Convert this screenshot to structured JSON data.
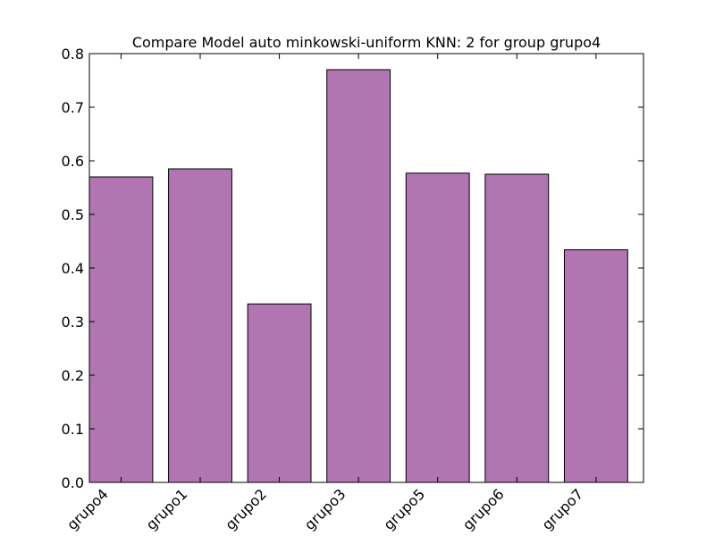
{
  "chart_data": {
    "type": "bar",
    "title": "Compare Model auto minkowski-uniform KNN: 2 for group grupo4",
    "xlabel": "",
    "ylabel": "",
    "categories": [
      "grupo4",
      "grupo1",
      "grupo2",
      "grupo3",
      "grupo5",
      "grupo6",
      "grupo7"
    ],
    "values": [
      0.57,
      0.585,
      0.333,
      0.77,
      0.577,
      0.575,
      0.434
    ],
    "ylim": [
      0.0,
      0.8
    ],
    "yticks": [
      "0.0",
      "0.1",
      "0.2",
      "0.3",
      "0.4",
      "0.5",
      "0.6",
      "0.7",
      "0.8"
    ],
    "grid": false,
    "bar_color": "#b175b1",
    "edge_color": "#000000"
  }
}
